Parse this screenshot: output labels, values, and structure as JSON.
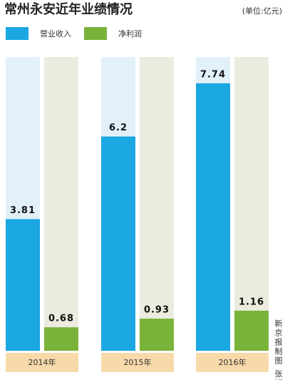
{
  "chart_data": {
    "type": "bar",
    "title": "常州永安近年业绩情况",
    "unit": "(单位:亿元)",
    "credit": "新京报制图 张妍",
    "categories": [
      "2014年",
      "2015年",
      "2016年"
    ],
    "series": [
      {
        "name": "营业收入",
        "color": "#1ba7e1",
        "values": [
          3.81,
          6.2,
          7.74
        ]
      },
      {
        "name": "净利润",
        "color": "#7ab33a",
        "values": [
          0.68,
          0.93,
          1.16
        ]
      }
    ],
    "ylim": [
      0,
      8.5
    ]
  }
}
